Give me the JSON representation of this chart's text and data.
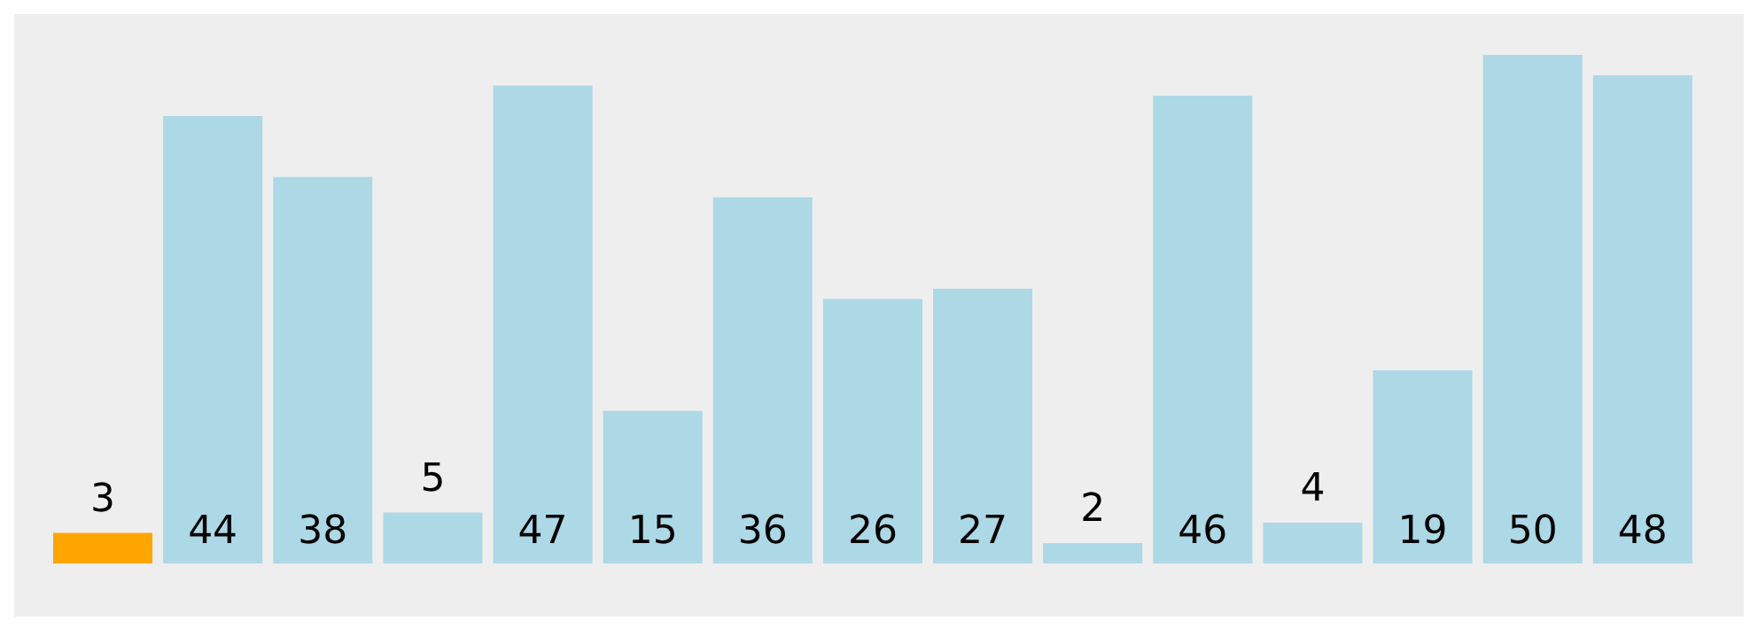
{
  "chart_data": {
    "type": "bar",
    "categories": [
      null,
      null,
      null,
      null,
      null,
      null,
      null,
      null,
      null,
      null,
      null,
      null,
      null,
      null,
      null
    ],
    "values": [
      3,
      44,
      38,
      5,
      47,
      15,
      36,
      26,
      27,
      2,
      46,
      4,
      19,
      50,
      48
    ],
    "colors": [
      "#ffa500",
      "#add8e6",
      "#add8e6",
      "#add8e6",
      "#add8e6",
      "#add8e6",
      "#add8e6",
      "#add8e6",
      "#add8e6",
      "#add8e6",
      "#add8e6",
      "#add8e6",
      "#add8e6",
      "#add8e6",
      "#add8e6"
    ],
    "data_labels": true
  }
}
